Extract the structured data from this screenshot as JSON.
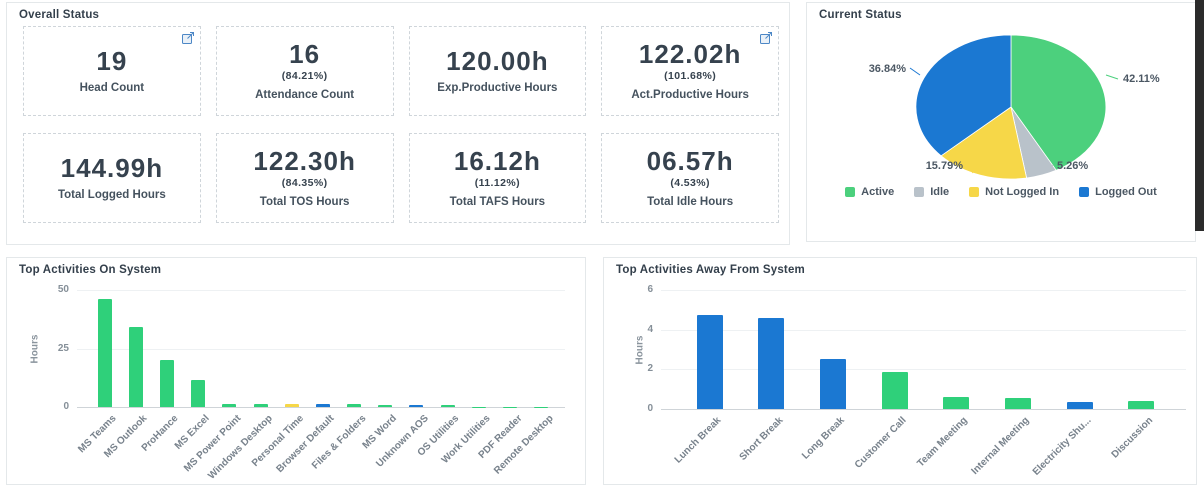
{
  "overall": {
    "title": "Overall Status",
    "cards": [
      {
        "value": "19",
        "pct": "",
        "label": "Head Count"
      },
      {
        "value": "16",
        "pct": "(84.21%)",
        "label": "Attendance Count"
      },
      {
        "value": "120.00h",
        "pct": "",
        "label": "Exp.Productive Hours"
      },
      {
        "value": "122.02h",
        "pct": "(101.68%)",
        "label": "Act.Productive Hours"
      },
      {
        "value": "144.99h",
        "pct": "",
        "label": "Total Logged Hours"
      },
      {
        "value": "122.30h",
        "pct": "(84.35%)",
        "label": "Total TOS Hours"
      },
      {
        "value": "16.12h",
        "pct": "(11.12%)",
        "label": "Total TAFS Hours"
      },
      {
        "value": "06.57h",
        "pct": "(4.53%)",
        "label": "Total Idle Hours"
      }
    ]
  },
  "icons": {
    "popout": "open-in-new-window"
  },
  "colors": {
    "green": "#2fd07a",
    "blue": "#1b78d2",
    "yellow": "#f6d748",
    "gray": "#b9c2ca",
    "accent_icon": "#4c87c6"
  },
  "chart_data": [
    {
      "type": "pie",
      "title": "Current Status",
      "labels": [
        "Active",
        "Idle",
        "Not Logged In",
        "Logged Out"
      ],
      "values": [
        42.11,
        5.26,
        15.79,
        36.84
      ],
      "value_labels": [
        "42.11%",
        "5.26%",
        "15.79%",
        "36.84%"
      ],
      "colors": [
        "#4cd07d",
        "#b9c2ca",
        "#f6d748",
        "#1b78d2"
      ],
      "legend_position": "bottom",
      "start_angle": "top",
      "direction": "clockwise"
    },
    {
      "type": "bar",
      "title": "Top Activities On System",
      "xlabel": "",
      "ylabel": "Hours",
      "ylim": [
        0,
        50
      ],
      "yticks": [
        0,
        25,
        50
      ],
      "grid": "horizontal",
      "categories": [
        "MS Teams",
        "MS Outlook",
        "ProHance",
        "MS Excel",
        "MS Power Point",
        "Windows Desktop",
        "Personal Time",
        "Browser Default",
        "Files & Folders",
        "MS Word",
        "Unknown AOS",
        "OS Utilities",
        "Work Utilities",
        "PDF Reader",
        "Remote Desktop"
      ],
      "values": [
        46,
        34,
        20,
        11.5,
        1.5,
        1.2,
        1.3,
        1.3,
        1.3,
        0.8,
        1.0,
        0.8,
        0.2,
        0.1,
        0.1
      ],
      "bar_colors": [
        "#2fd07a",
        "#2fd07a",
        "#2fd07a",
        "#2fd07a",
        "#2fd07a",
        "#2fd07a",
        "#f6d748",
        "#1b78d2",
        "#2fd07a",
        "#2fd07a",
        "#1b78d2",
        "#2fd07a",
        "#2fd07a",
        "#2fd07a",
        "#2fd07a"
      ]
    },
    {
      "type": "bar",
      "title": "Top Activities Away From System",
      "xlabel": "",
      "ylabel": "Hours",
      "ylim": [
        0,
        6
      ],
      "yticks": [
        0,
        2,
        4,
        6
      ],
      "grid": "horizontal",
      "categories": [
        "Lunch Break",
        "Short Break",
        "Long Break",
        "Customer Call",
        "Team Meeting",
        "Internal Meeting",
        "Electricity Shu...",
        "Discussion"
      ],
      "values": [
        4.75,
        4.6,
        2.5,
        1.85,
        0.6,
        0.55,
        0.35,
        0.4
      ],
      "bar_colors": [
        "#1b78d2",
        "#1b78d2",
        "#1b78d2",
        "#2fd07a",
        "#2fd07a",
        "#2fd07a",
        "#1b78d2",
        "#2fd07a"
      ]
    }
  ]
}
